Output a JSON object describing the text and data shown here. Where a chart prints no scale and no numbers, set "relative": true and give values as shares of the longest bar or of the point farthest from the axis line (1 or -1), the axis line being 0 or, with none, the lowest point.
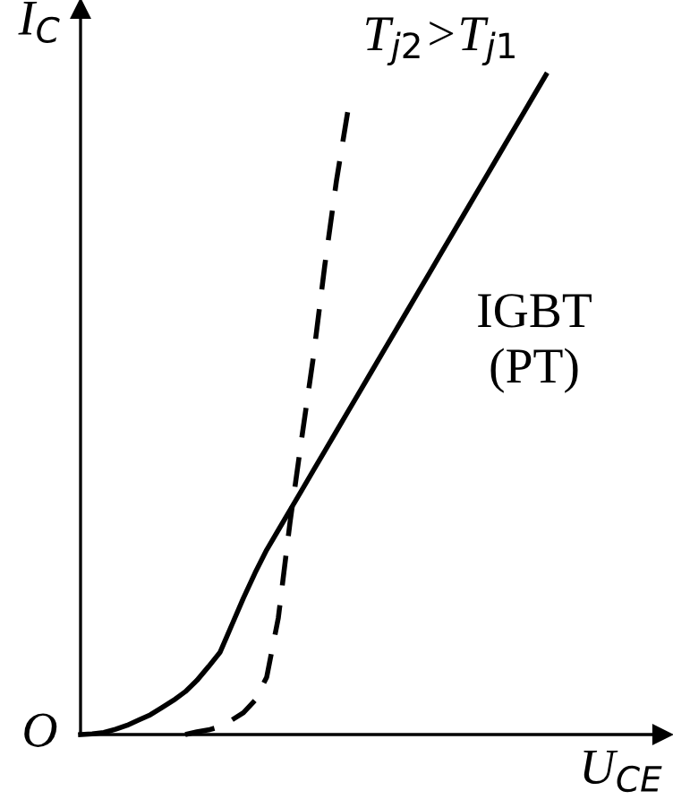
{
  "chart_data": {
    "type": "line",
    "relative": true,
    "xlabel": "U$_{CE}$",
    "ylabel": "I$_{C}$",
    "annotations": [
      "O",
      "T$_{j2}$>T$_{j1}$",
      "IGBT\n(PT)"
    ],
    "categories": [
      null,
      null,
      null,
      null,
      null,
      null,
      null,
      null,
      null,
      null,
      null,
      null,
      null,
      null,
      null,
      null,
      null,
      null,
      null,
      null,
      null,
      null,
      null,
      null,
      null,
      null,
      null,
      null,
      null,
      null,
      null,
      null,
      null,
      null,
      null,
      null,
      null,
      null,
      null,
      null,
      null
    ],
    "series": [
      {
        "color": "#000000",
        "line_style": "solid",
        "values": [
          0,
          0.001,
          0.003,
          0.008,
          0.014,
          0.022,
          0.03,
          0.041,
          0.052,
          0.065,
          0.082,
          0.103,
          0.125,
          0.166,
          0.207,
          0.245,
          0.28,
          0.31,
          0.34,
          0.37,
          0.4,
          0.43,
          0.46,
          0.49,
          0.52,
          0.55,
          0.58,
          0.61,
          0.64,
          0.67,
          0.7,
          0.73,
          0.76,
          0.79,
          0.82,
          0.85,
          0.88,
          0.91,
          0.94,
          0.97,
          1.0
        ]
      },
      {
        "color": "#000000",
        "line_style": "dashed",
        "values": [
          null,
          null,
          null,
          null,
          null,
          null,
          null,
          null,
          null,
          0,
          0.004,
          0.007,
          0.012,
          0.022,
          0.033,
          0.052,
          0.087,
          0.177,
          0.321,
          0.448,
          0.571,
          0.712,
          0.84,
          0.948,
          null,
          null,
          null,
          null,
          null,
          null,
          null,
          null,
          null,
          null,
          null,
          null,
          null,
          null,
          null,
          null,
          null
        ]
      }
    ]
  }
}
